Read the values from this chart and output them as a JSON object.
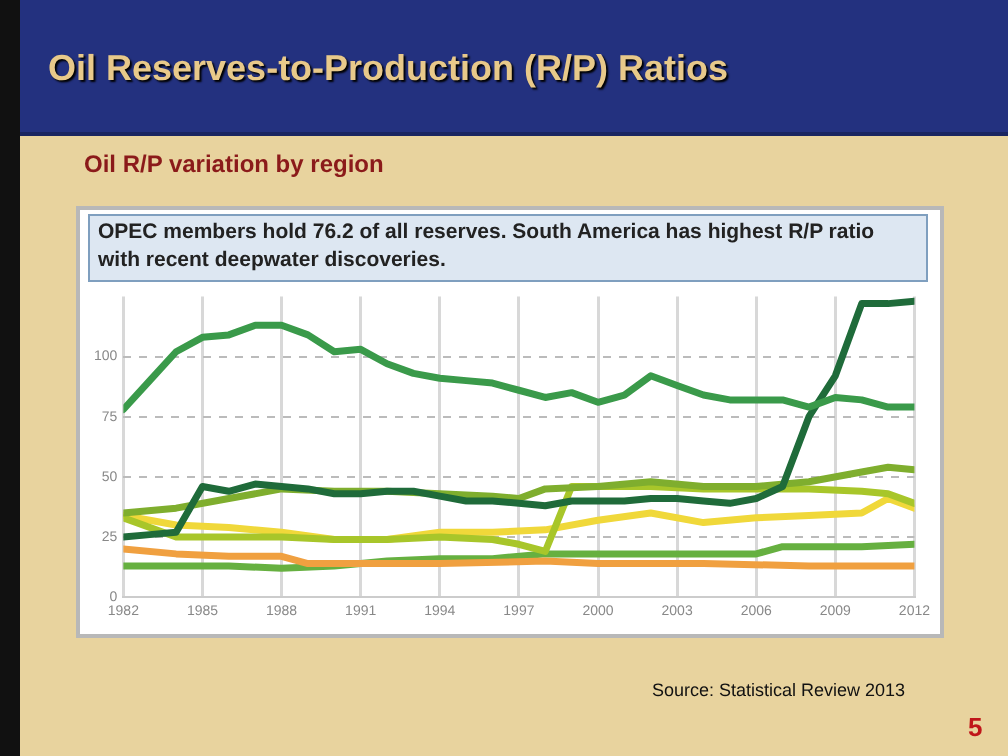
{
  "chart_data": {
    "type": "line",
    "title": "Oil Reserves-to-Production (R/P) Ratios",
    "subtitle": "Oil R/P variation by region",
    "annotations": [
      "OPEC members hold 76.2 of all reserves. South America has highest R/P ratio with recent deepwater discoveries.",
      "Source: Statistical Review 2013",
      "5"
    ],
    "xlim": [
      1982,
      2012
    ],
    "xticks": [
      1982,
      1985,
      1988,
      1991,
      1994,
      1997,
      2000,
      2003,
      2006,
      2009,
      2012
    ],
    "ylim": [
      0,
      125
    ],
    "yticks": [
      0,
      25,
      50,
      75,
      100
    ],
    "grid": true,
    "legend": false,
    "marker": "none",
    "line_style": "solid",
    "series": [
      {
        "color": "#3a9a4a",
        "x": [
          1982,
          1983,
          1984,
          1985,
          1986,
          1987,
          1988,
          1989,
          1990,
          1991,
          1992,
          1993,
          1994,
          1995,
          1996,
          1997,
          1998,
          1999,
          2000,
          2001,
          2002,
          2003,
          2004,
          2005,
          2006,
          2007,
          2008,
          2009,
          2010,
          2011,
          2012
        ],
        "values": [
          78,
          90,
          102,
          108,
          109,
          113,
          113,
          109,
          102,
          103,
          97,
          93,
          91,
          90,
          89,
          86,
          83,
          85,
          81,
          84,
          92,
          88,
          84,
          82,
          82,
          82,
          79,
          83,
          82,
          79,
          79
        ]
      },
      {
        "color": "#1f6b3a",
        "x": [
          1982,
          1983,
          1984,
          1985,
          1986,
          1987,
          1988,
          1989,
          1990,
          1991,
          1992,
          1993,
          1994,
          1995,
          1996,
          1997,
          1998,
          1999,
          2000,
          2001,
          2002,
          2003,
          2004,
          2005,
          2006,
          2007,
          2008,
          2009,
          2010,
          2011,
          2012
        ],
        "values": [
          25,
          26,
          27,
          46,
          44,
          47,
          46,
          45,
          43,
          43,
          44,
          44,
          42,
          40,
          40,
          39,
          38,
          40,
          40,
          40,
          41,
          41,
          40,
          39,
          41,
          46,
          75,
          92,
          122,
          122,
          123
        ]
      },
      {
        "color": "#7fae2e",
        "x": [
          1982,
          1984,
          1986,
          1988,
          1990,
          1992,
          1994,
          1996,
          1997,
          1998,
          2000,
          2002,
          2004,
          2006,
          2008,
          2010,
          2011,
          2012
        ],
        "values": [
          35,
          37,
          41,
          45,
          44,
          44,
          43,
          42,
          41,
          45,
          46,
          48,
          46,
          46,
          48,
          52,
          54,
          53
        ]
      },
      {
        "color": "#a8c62a",
        "x": [
          1982,
          1984,
          1986,
          1988,
          1990,
          1992,
          1994,
          1996,
          1997,
          1998,
          1999,
          2000,
          2002,
          2004,
          2006,
          2008,
          2010,
          2011,
          2012
        ],
        "values": [
          33,
          25,
          25,
          25,
          24,
          24,
          25,
          24,
          22,
          19,
          46,
          46,
          46,
          45,
          45,
          45,
          44,
          43,
          39
        ]
      },
      {
        "color": "#f0d83a",
        "x": [
          1982,
          1983,
          1984,
          1986,
          1988,
          1990,
          1992,
          1994,
          1996,
          1998,
          2000,
          2002,
          2004,
          2006,
          2008,
          2010,
          2011,
          2012
        ],
        "values": [
          34,
          32,
          30,
          29,
          27,
          24,
          24,
          27,
          27,
          28,
          32,
          35,
          31,
          33,
          34,
          35,
          41,
          37
        ]
      },
      {
        "color": "#f0a040",
        "x": [
          1982,
          1984,
          1986,
          1988,
          1989,
          1990,
          1994,
          1998,
          2000,
          2004,
          2008,
          2012
        ],
        "values": [
          20,
          18,
          17,
          17,
          14,
          14,
          14,
          15,
          14,
          14,
          13,
          13
        ]
      },
      {
        "color": "#66b040",
        "x": [
          1982,
          1986,
          1988,
          1990,
          1992,
          1994,
          1996,
          1998,
          2000,
          2004,
          2006,
          2007,
          2010,
          2012
        ],
        "values": [
          13,
          13,
          12,
          13,
          15,
          16,
          16,
          18,
          18,
          18,
          18,
          21,
          21,
          22
        ]
      }
    ]
  }
}
